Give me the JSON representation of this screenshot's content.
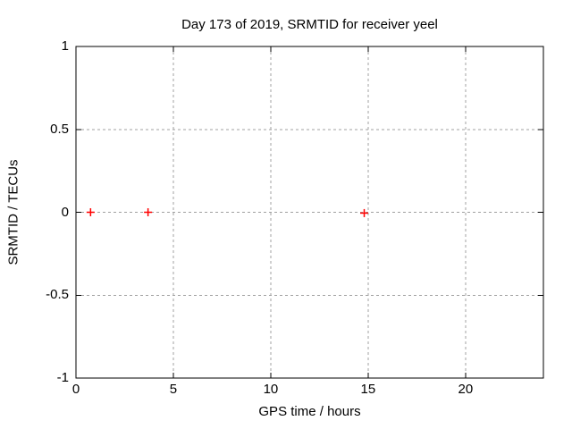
{
  "chart_data": {
    "type": "scatter",
    "title": "Day 173 of 2019, SRMTID for receiver yeel",
    "xlabel": "GPS time / hours",
    "ylabel": "SRMTID / TECUs",
    "xlim": [
      0,
      24
    ],
    "ylim": [
      -1,
      1
    ],
    "xticks": [
      0,
      5,
      10,
      15,
      20
    ],
    "yticks": [
      1,
      0.5,
      0,
      -0.5,
      -1
    ],
    "xticklabels": [
      "0",
      "5",
      "10",
      "15",
      "20"
    ],
    "yticklabels": [
      "1",
      "0.5",
      "0",
      "-0.5",
      "-1"
    ],
    "grid": true,
    "grid_style": "dashed",
    "legend": "none",
    "series": [
      {
        "name": "SRMTID",
        "marker": "plus",
        "color": "#ff0000",
        "x": [
          0.75,
          3.7,
          14.8
        ],
        "y": [
          0,
          0,
          -0.005
        ]
      }
    ],
    "colors": {
      "background": "#ffffff",
      "border": "#000000",
      "grid": "#a0a0a0",
      "text": "#000000",
      "marker": "#ff0000"
    }
  }
}
